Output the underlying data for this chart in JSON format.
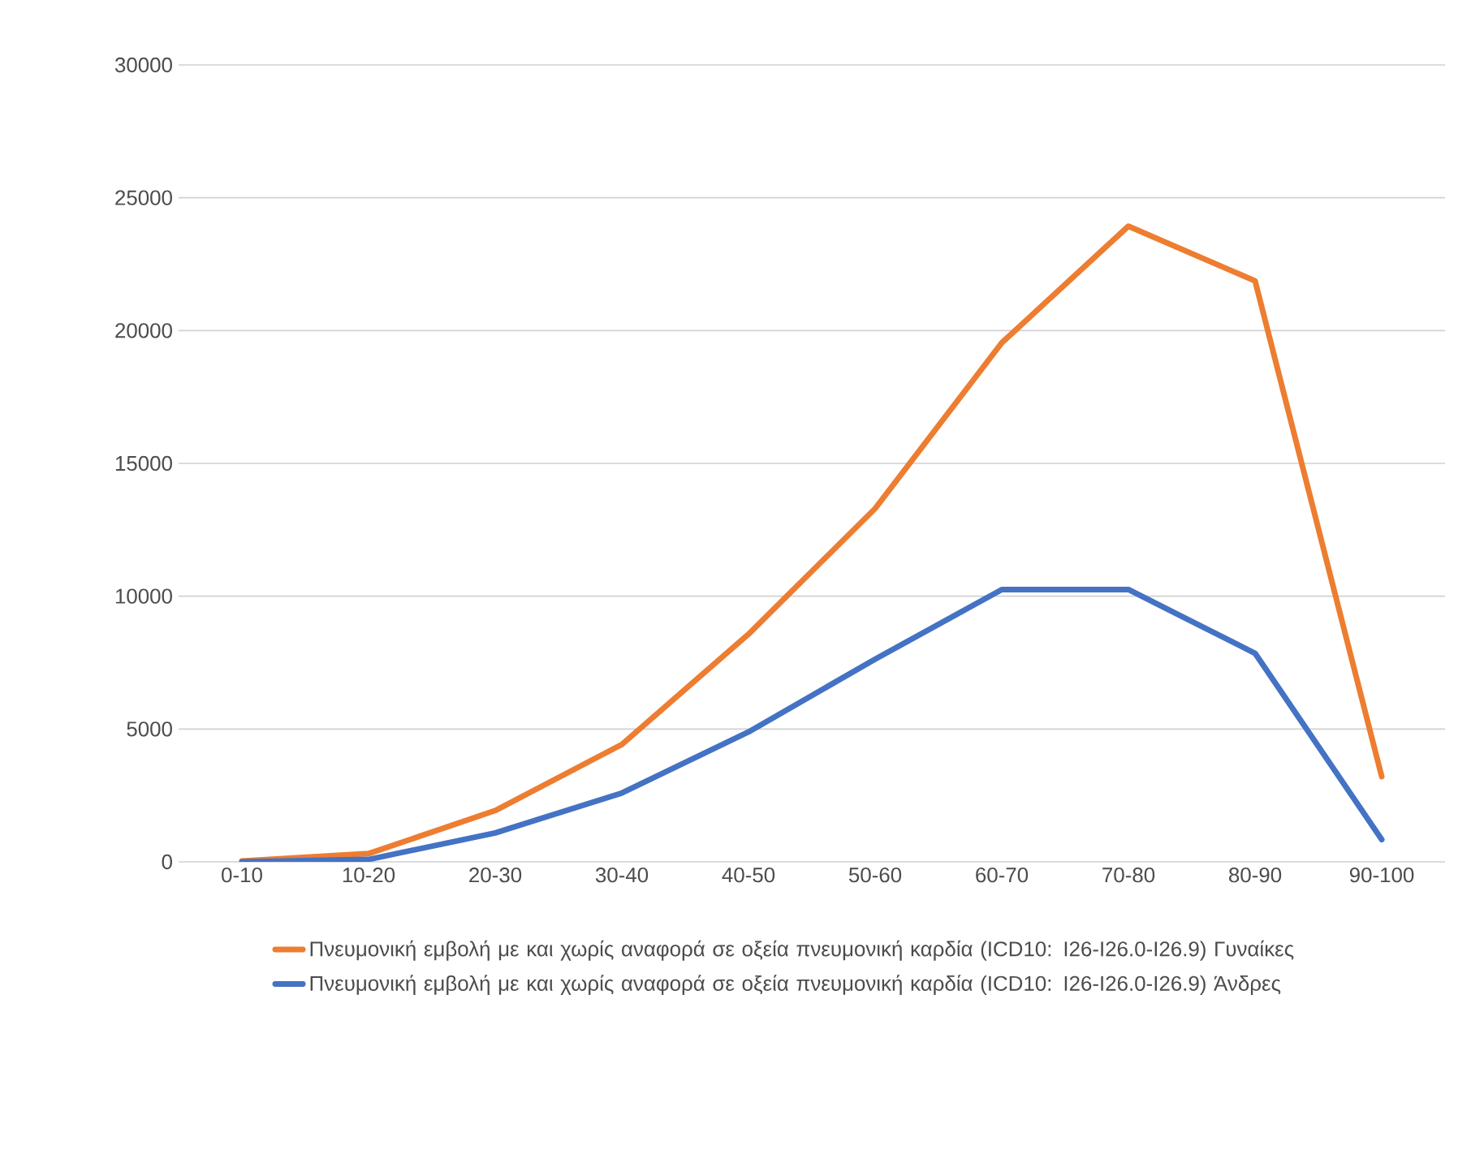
{
  "chart_data": {
    "type": "line",
    "categories": [
      "0-10",
      "10-20",
      "20-30",
      "30-40",
      "40-50",
      "50-60",
      "60-70",
      "70-80",
      "80-90",
      "90-100"
    ],
    "series": [
      {
        "name": "Πνευμονική εμβολή με και χωρίς αναφορά  σε οξεία πνευμονική καρδία (ICD10: I26-I26.0-I26.9) Γυναίκες",
        "color": "#ed7d31",
        "values": [
          30,
          310,
          1930,
          4420,
          8570,
          13300,
          19540,
          23930,
          21870,
          3210
        ]
      },
      {
        "name": "Πνευμονική εμβολή με και χωρίς αναφορά  σε οξεία πνευμονική καρδία (ICD10: I26-I26.0-I26.9) Άνδρες",
        "color": "#4472c4",
        "values": [
          0,
          90,
          1090,
          2590,
          4890,
          7630,
          10250,
          10250,
          7850,
          840
        ]
      }
    ],
    "ylim": [
      0,
      30000
    ],
    "yticks": [
      0,
      5000,
      10000,
      15000,
      20000,
      25000,
      30000
    ],
    "grid": "y",
    "legend": "bottom",
    "marker": "none",
    "line_style": "solid"
  }
}
